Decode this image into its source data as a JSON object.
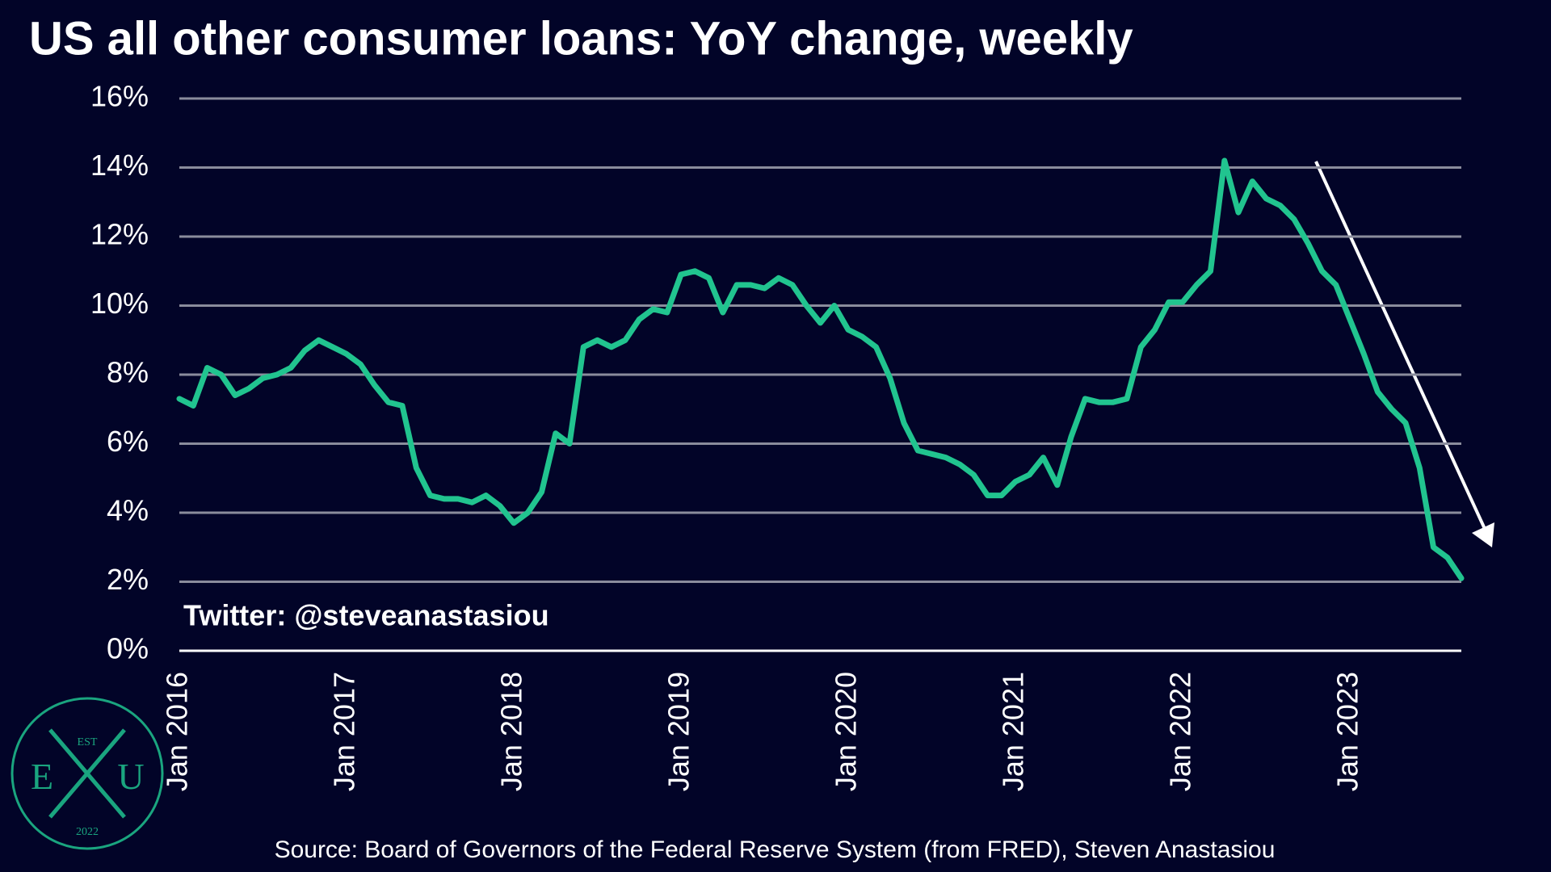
{
  "chart_data": {
    "type": "line",
    "title": "US all other consumer loans: YoY change, weekly",
    "watermark": "Twitter: @steveanastasiou",
    "source": "Source: Board of Governors of the Federal Reserve System (from FRED), Steven Anastasiou",
    "logo": {
      "top": "EST",
      "left": "E",
      "right": "U",
      "bottom": "2022"
    },
    "color": "#21c48f",
    "grid": true,
    "x": [
      "2016-01",
      "2016-02",
      "2016-03",
      "2016-04",
      "2016-05",
      "2016-06",
      "2016-07",
      "2016-08",
      "2016-09",
      "2016-10",
      "2016-11",
      "2016-12",
      "2017-01",
      "2017-02",
      "2017-03",
      "2017-04",
      "2017-05",
      "2017-06",
      "2017-07",
      "2017-08",
      "2017-09",
      "2017-10",
      "2017-11",
      "2017-12",
      "2018-01",
      "2018-02",
      "2018-03",
      "2018-04",
      "2018-05",
      "2018-06",
      "2018-07",
      "2018-08",
      "2018-09",
      "2018-10",
      "2018-11",
      "2018-12",
      "2019-01",
      "2019-02",
      "2019-03",
      "2019-04",
      "2019-05",
      "2019-06",
      "2019-07",
      "2019-08",
      "2019-09",
      "2019-10",
      "2019-11",
      "2019-12",
      "2020-01",
      "2020-02",
      "2020-03",
      "2020-04",
      "2020-05",
      "2020-06",
      "2020-07",
      "2020-08",
      "2020-09",
      "2020-10",
      "2020-11",
      "2020-12",
      "2021-01",
      "2021-02",
      "2021-03",
      "2021-04",
      "2021-05",
      "2021-06",
      "2021-07",
      "2021-08",
      "2021-09",
      "2021-10",
      "2021-11",
      "2021-12",
      "2022-01",
      "2022-02",
      "2022-03",
      "2022-04",
      "2022-05",
      "2022-06",
      "2022-07",
      "2022-08",
      "2022-09",
      "2022-10",
      "2022-11",
      "2022-12",
      "2023-01",
      "2023-02",
      "2023-03",
      "2023-04",
      "2023-05",
      "2023-06",
      "2023-07",
      "2023-08",
      "2023-09"
    ],
    "values": [
      7.3,
      7.1,
      8.2,
      8.0,
      7.4,
      7.6,
      7.9,
      8.0,
      8.2,
      8.7,
      9.0,
      8.8,
      8.6,
      8.3,
      7.7,
      7.2,
      7.1,
      5.3,
      4.5,
      4.4,
      4.4,
      4.3,
      4.5,
      4.2,
      3.7,
      4.0,
      4.6,
      6.3,
      6.0,
      8.8,
      9.0,
      8.8,
      9.0,
      9.6,
      9.9,
      9.8,
      10.9,
      11.0,
      10.8,
      9.8,
      10.6,
      10.6,
      10.5,
      10.8,
      10.6,
      10.0,
      9.5,
      10.0,
      9.3,
      9.1,
      8.8,
      7.9,
      6.6,
      5.8,
      5.7,
      5.6,
      5.4,
      5.1,
      4.5,
      4.5,
      4.9,
      5.1,
      5.6,
      4.8,
      6.2,
      7.3,
      7.2,
      7.2,
      7.3,
      8.8,
      9.3,
      10.1,
      10.1,
      10.6,
      11.0,
      14.2,
      12.7,
      13.6,
      13.1,
      12.9,
      12.5,
      11.8,
      11.0,
      10.6,
      9.6,
      8.6,
      7.5,
      7.0,
      6.6,
      5.3,
      3.0,
      2.7,
      2.1
    ],
    "xlim": [
      "2016-01",
      "2023-09"
    ],
    "xticks": [
      {
        "value": "2016-01",
        "label": "Jan 2016"
      },
      {
        "value": "2017-01",
        "label": "Jan 2017"
      },
      {
        "value": "2018-01",
        "label": "Jan 2018"
      },
      {
        "value": "2019-01",
        "label": "Jan 2019"
      },
      {
        "value": "2020-01",
        "label": "Jan 2020"
      },
      {
        "value": "2021-01",
        "label": "Jan 2021"
      },
      {
        "value": "2022-01",
        "label": "Jan 2022"
      },
      {
        "value": "2023-01",
        "label": "Jan 2023"
      }
    ],
    "ylim": [
      0,
      16
    ],
    "yticks": [
      {
        "value": 0,
        "label": "0%"
      },
      {
        "value": 2,
        "label": "2%"
      },
      {
        "value": 4,
        "label": "4%"
      },
      {
        "value": 6,
        "label": "6%"
      },
      {
        "value": 8,
        "label": "8%"
      },
      {
        "value": 10,
        "label": "10%"
      },
      {
        "value": 12,
        "label": "12%"
      },
      {
        "value": 14,
        "label": "14%"
      },
      {
        "value": 16,
        "label": "16%"
      }
    ]
  }
}
